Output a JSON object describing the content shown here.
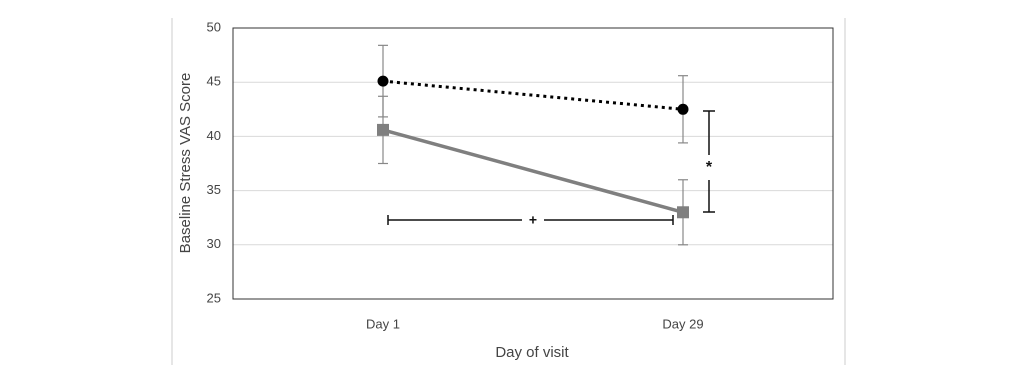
{
  "chart_data": {
    "type": "line",
    "x_label": "Day of visit",
    "y_label": "Baseline Stress VAS Score",
    "categories": [
      "Day 1",
      "Day 29"
    ],
    "series": [
      {
        "color": "#000000",
        "values": [
          45.1,
          42.5
        ],
        "errors": [
          3.3,
          3.1
        ],
        "line_style": "dotted",
        "marker": "circle"
      },
      {
        "color": "#7f7f7f",
        "values": [
          40.6,
          33.0
        ],
        "errors": [
          3.1,
          3.0
        ],
        "line_style": "solid",
        "marker": "square"
      }
    ],
    "annotations": [
      "*",
      "+"
    ],
    "ylim": [
      25,
      50
    ],
    "yticks": [
      25,
      30,
      35,
      40,
      45,
      50
    ],
    "grid": true
  }
}
